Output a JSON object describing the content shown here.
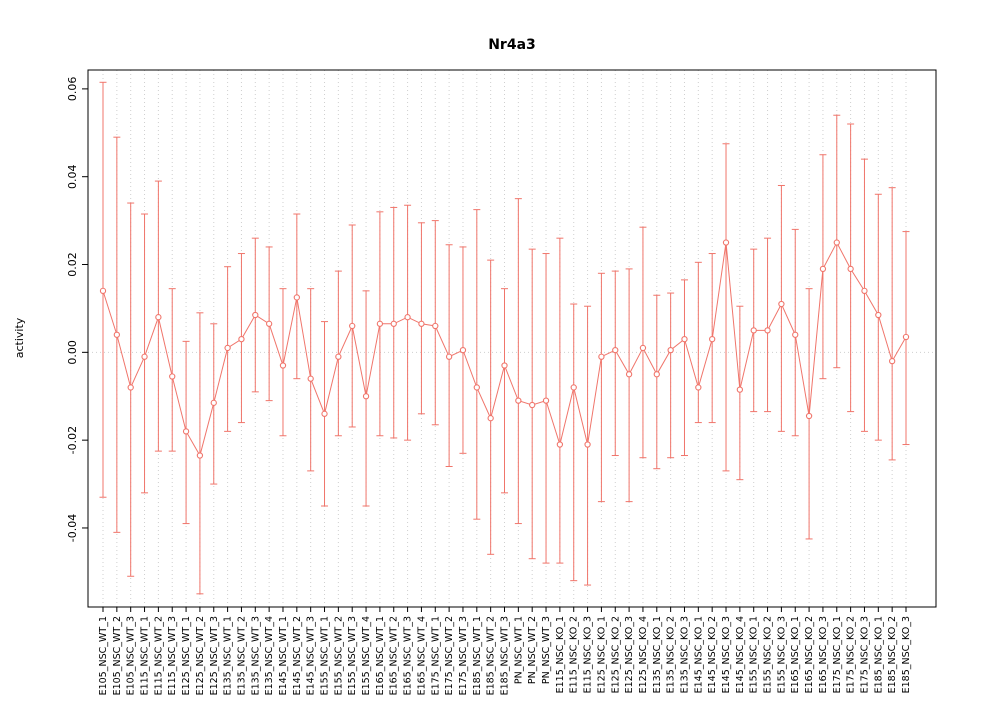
{
  "chart_data": {
    "type": "line",
    "title": "Nr4a3",
    "xlabel": "",
    "ylabel": "activity",
    "marker": "open-circle",
    "grid": "dotted-vertical",
    "zero_line": true,
    "legend": "none",
    "ylim": [
      -0.058,
      0.0643
    ],
    "ytick_values": [
      -0.04,
      -0.02,
      0.0,
      0.02,
      0.04,
      0.06
    ],
    "ytick_labels": [
      "-0.04",
      "-0.02",
      "0.00",
      "0.02",
      "0.04",
      "0.06"
    ],
    "colors": {
      "series": "#f0756b",
      "grid": "#cfcfcf",
      "axis": "#000000",
      "background": "#ffffff"
    },
    "categories": [
      "E105_NSC_WT_1",
      "E105_NSC_WT_2",
      "E105_NSC_WT_3",
      "E115_NSC_WT_1",
      "E115_NSC_WT_2",
      "E115_NSC_WT_3",
      "E125_NSC_WT_1",
      "E125_NSC_WT_2",
      "E125_NSC_WT_3",
      "E135_NSC_WT_1",
      "E135_NSC_WT_2",
      "E135_NSC_WT_3",
      "E135_NSC_WT_4",
      "E145_NSC_WT_1",
      "E145_NSC_WT_2",
      "E145_NSC_WT_3",
      "E155_NSC_WT_1",
      "E155_NSC_WT_2",
      "E155_NSC_WT_3",
      "E155_NSC_WT_4",
      "E165_NSC_WT_1",
      "E165_NSC_WT_2",
      "E165_NSC_WT_3",
      "E165_NSC_WT_4",
      "E175_NSC_WT_1",
      "E175_NSC_WT_2",
      "E175_NSC_WT_3",
      "E185_NSC_WT_1",
      "E185_NSC_WT_2",
      "E185_NSC_WT_3",
      "PN_NSC_WT_1",
      "PN_NSC_WT_2",
      "PN_NSC_WT_3",
      "E115_NSC_KO_1",
      "E115_NSC_KO_2",
      "E115_NSC_KO_3",
      "E125_NSC_KO_1",
      "E125_NSC_KO_2",
      "E125_NSC_KO_3",
      "E125_NSC_KO_4",
      "E135_NSC_KO_1",
      "E135_NSC_KO_2",
      "E135_NSC_KO_3",
      "E145_NSC_KO_1",
      "E145_NSC_KO_2",
      "E145_NSC_KO_3",
      "E145_NSC_KO_4",
      "E155_NSC_KO_1",
      "E155_NSC_KO_2",
      "E155_NSC_KO_3",
      "E165_NSC_KO_1",
      "E165_NSC_KO_2",
      "E165_NSC_KO_3",
      "E175_NSC_KO_1",
      "E175_NSC_KO_2",
      "E175_NSC_KO_3",
      "E185_NSC_KO_1",
      "E185_NSC_KO_2",
      "E185_NSC_KO_3"
    ],
    "series": [
      {
        "name": "activity",
        "values": [
          0.014,
          0.004,
          -0.008,
          -0.001,
          0.008,
          -0.0055,
          -0.018,
          -0.0235,
          -0.0115,
          0.001,
          0.003,
          0.0085,
          0.0065,
          -0.003,
          0.0125,
          -0.006,
          -0.014,
          -0.001,
          0.006,
          -0.01,
          0.0065,
          0.0065,
          0.008,
          0.0065,
          0.006,
          -0.001,
          0.0005,
          -0.008,
          -0.015,
          -0.003,
          -0.011,
          -0.012,
          -0.011,
          -0.021,
          -0.008,
          -0.021,
          -0.001,
          0.0005,
          -0.005,
          0.001,
          -0.005,
          0.0005,
          0.003,
          -0.008,
          0.003,
          0.025,
          -0.0085,
          0.005,
          0.005,
          0.011,
          0.004,
          -0.0145,
          0.019,
          0.025,
          0.019,
          0.014,
          0.0085,
          -0.002,
          0.0035
        ],
        "error_low": [
          -0.033,
          -0.041,
          -0.051,
          -0.032,
          -0.0225,
          -0.0225,
          -0.039,
          -0.055,
          -0.03,
          -0.018,
          -0.016,
          -0.009,
          -0.011,
          -0.019,
          -0.006,
          -0.027,
          -0.035,
          -0.019,
          -0.017,
          -0.035,
          -0.019,
          -0.0195,
          -0.02,
          -0.014,
          -0.0165,
          -0.026,
          -0.023,
          -0.038,
          -0.046,
          -0.032,
          -0.039,
          -0.047,
          -0.048,
          -0.048,
          -0.052,
          -0.053,
          -0.034,
          -0.0235,
          -0.034,
          -0.024,
          -0.0265,
          -0.024,
          -0.0235,
          -0.016,
          -0.016,
          -0.027,
          -0.029,
          -0.0135,
          -0.0135,
          -0.018,
          -0.019,
          -0.0425,
          -0.006,
          -0.0035,
          -0.0135,
          -0.018,
          -0.02,
          -0.0245,
          -0.021
        ],
        "error_high": [
          0.0615,
          0.049,
          0.034,
          0.0315,
          0.039,
          0.0145,
          0.0025,
          0.009,
          0.0065,
          0.0195,
          0.0225,
          0.026,
          0.024,
          0.0145,
          0.0315,
          0.0145,
          0.007,
          0.0185,
          0.029,
          0.014,
          0.032,
          0.033,
          0.0335,
          0.0295,
          0.03,
          0.0245,
          0.024,
          0.0325,
          0.021,
          0.0145,
          0.035,
          0.0235,
          0.0225,
          0.026,
          0.011,
          0.0105,
          0.018,
          0.0185,
          0.019,
          0.0285,
          0.013,
          0.0135,
          0.0165,
          0.0205,
          0.0225,
          0.0475,
          0.0105,
          0.0235,
          0.026,
          0.038,
          0.028,
          0.0145,
          0.045,
          0.054,
          0.052,
          0.044,
          0.036,
          0.0375,
          0.0275
        ]
      }
    ]
  }
}
